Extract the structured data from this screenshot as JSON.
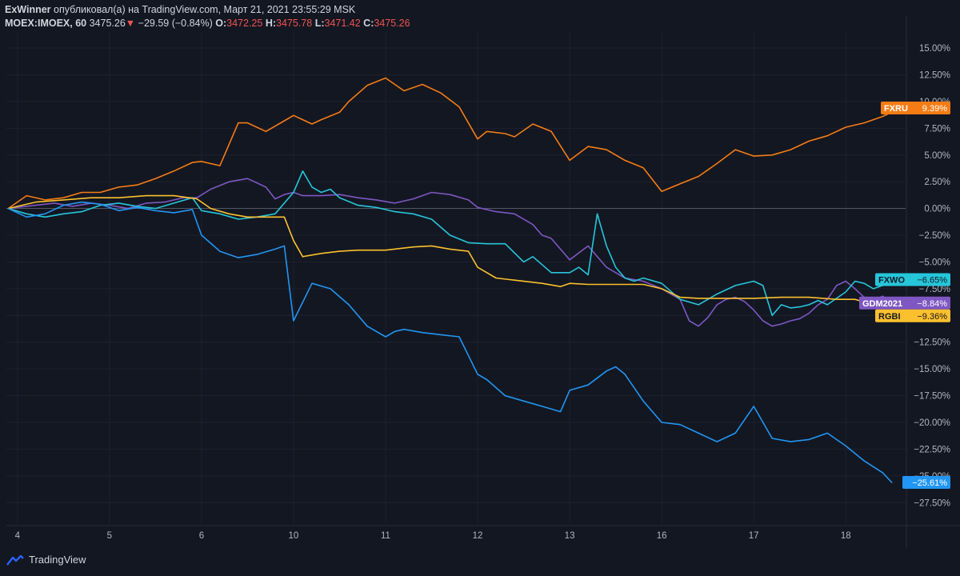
{
  "header": {
    "user": "ExWinner",
    "published_text": "опубликовал(а) на TradingView.com, Март 21, 2021 23:55:29 MSK",
    "symbol": "MOEX:IMOEX, 60",
    "last": "3475.26",
    "change_arrow": "▼",
    "change": "−29.59 (−0.84%)",
    "o_label": "O:",
    "o_val": "3472.25",
    "h_label": "H:",
    "h_val": "3475.78",
    "l_label": "L:",
    "l_val": "3471.42",
    "c_label": "C:",
    "c_val": "3475.26"
  },
  "footer": {
    "brand": "TradingView",
    "logo_icon": "tradingview-logo-icon"
  },
  "colors": {
    "background": "#131722",
    "grid": "#1e2230",
    "text": "#b2b5be",
    "down": "#ef5350"
  },
  "chart_data": {
    "type": "line",
    "title": "MOEX:IMOEX, 60",
    "x_label_type": "day of month",
    "ylim": [
      -29.5,
      16.5
    ],
    "y_ticks": [
      15,
      12.5,
      10,
      7.5,
      5,
      2.5,
      0,
      -2.5,
      -5,
      -7.5,
      -10,
      -12.5,
      -15,
      -17.5,
      -20,
      -22.5,
      -25,
      -27.5
    ],
    "y_tick_labels": [
      "15.00%",
      "12.50%",
      "10.00%",
      "7.50%",
      "5.00%",
      "2.50%",
      "0.00%",
      "−2.50%",
      "−5.00%",
      "−7.50%",
      "−10.00%",
      "−12.50%",
      "−15.00%",
      "−17.50%",
      "−20.00%",
      "−22.50%",
      "−25.00%",
      "−27.50%"
    ],
    "x_ticks": [
      {
        "label": "4",
        "x": 0
      },
      {
        "label": "5",
        "x": 1
      },
      {
        "label": "6",
        "x": 2
      },
      {
        "label": "10",
        "x": 3
      },
      {
        "label": "11",
        "x": 4
      },
      {
        "label": "12",
        "x": 5
      },
      {
        "label": "13",
        "x": 6
      },
      {
        "label": "16",
        "x": 7
      },
      {
        "label": "17",
        "x": 8
      },
      {
        "label": "18",
        "x": 9
      }
    ],
    "x_domain": [
      -0.12,
      9.65
    ],
    "series": [
      {
        "name": "FXRU",
        "color": "#f57c14",
        "last_label": "9.39%",
        "x": [
          -0.1,
          0.1,
          0.3,
          0.5,
          0.7,
          0.9,
          1.1,
          1.3,
          1.5,
          1.7,
          1.9,
          2.0,
          2.2,
          2.4,
          2.5,
          2.7,
          2.9,
          3.0,
          3.1,
          3.2,
          3.3,
          3.5,
          3.6,
          3.8,
          4.0,
          4.2,
          4.4,
          4.6,
          4.8,
          5.0,
          5.1,
          5.3,
          5.4,
          5.6,
          5.8,
          6.0,
          6.2,
          6.4,
          6.6,
          6.8,
          7.0,
          7.2,
          7.4,
          7.6,
          7.8,
          7.9,
          8.0,
          8.2,
          8.4,
          8.6,
          8.8,
          9.0,
          9.2,
          9.4,
          9.5,
          9.6
        ],
        "y": [
          0,
          1.2,
          0.8,
          1.0,
          1.5,
          1.5,
          2.0,
          2.2,
          2.8,
          3.5,
          4.3,
          4.4,
          4.0,
          8.0,
          8.0,
          7.2,
          8.2,
          8.7,
          8.3,
          7.9,
          8.3,
          9.0,
          10.0,
          11.5,
          12.2,
          11.0,
          11.6,
          10.8,
          9.5,
          6.5,
          7.2,
          7.0,
          6.7,
          7.9,
          7.2,
          4.5,
          5.8,
          5.5,
          4.5,
          3.8,
          1.6,
          2.3,
          3.0,
          4.2,
          5.5,
          5.2,
          4.9,
          5.0,
          5.5,
          6.3,
          6.8,
          7.6,
          8.0,
          8.6,
          9.0,
          9.39
        ]
      },
      {
        "name": "GDM2021",
        "color": "#7e57c2",
        "last_label": "−8.84%",
        "x": [
          -0.1,
          0.2,
          0.4,
          0.6,
          0.8,
          1.0,
          1.2,
          1.4,
          1.6,
          1.8,
          1.95,
          2.1,
          2.3,
          2.5,
          2.7,
          2.8,
          2.9,
          3.0,
          3.1,
          3.3,
          3.5,
          3.7,
          3.9,
          4.1,
          4.3,
          4.5,
          4.7,
          4.9,
          5.0,
          5.2,
          5.4,
          5.6,
          5.7,
          5.8,
          6.0,
          6.2,
          6.4,
          6.6,
          6.8,
          7.0,
          7.2,
          7.3,
          7.4,
          7.5,
          7.6,
          7.7,
          7.8,
          7.9,
          8.0,
          8.1,
          8.2,
          8.3,
          8.4,
          8.5,
          8.6,
          8.7,
          8.8,
          8.9,
          9.0,
          9.1,
          9.2,
          9.3,
          9.4,
          9.5
        ],
        "y": [
          0,
          0.3,
          0.5,
          0.2,
          0.5,
          0.3,
          0.0,
          0.5,
          0.6,
          1.0,
          1.0,
          1.8,
          2.5,
          2.8,
          2.0,
          0.9,
          1.3,
          1.5,
          1.2,
          1.2,
          1.3,
          1.0,
          0.8,
          0.5,
          0.9,
          1.5,
          1.3,
          0.8,
          0.1,
          -0.3,
          -0.5,
          -1.5,
          -2.5,
          -2.8,
          -4.8,
          -3.5,
          -5.5,
          -6.5,
          -6.8,
          -7.5,
          -8.5,
          -10.5,
          -11.0,
          -10.2,
          -9.0,
          -8.5,
          -8.3,
          -8.7,
          -9.5,
          -10.5,
          -11.0,
          -10.8,
          -10.5,
          -10.3,
          -9.8,
          -9.0,
          -8.5,
          -7.2,
          -6.8,
          -7.5,
          -8.3,
          -8.6,
          -8.2,
          -8.84
        ]
      },
      {
        "name": "FXWO",
        "color": "#26c6da",
        "last_label": "−6.65%",
        "x": [
          -0.1,
          0.1,
          0.3,
          0.5,
          0.7,
          0.9,
          1.1,
          1.3,
          1.5,
          1.7,
          1.9,
          2.0,
          2.2,
          2.4,
          2.6,
          2.8,
          3.0,
          3.1,
          3.2,
          3.3,
          3.4,
          3.5,
          3.7,
          3.9,
          4.1,
          4.3,
          4.5,
          4.7,
          4.9,
          5.1,
          5.3,
          5.5,
          5.6,
          5.8,
          6.0,
          6.1,
          6.2,
          6.3,
          6.4,
          6.5,
          6.6,
          6.7,
          6.8,
          7.0,
          7.2,
          7.4,
          7.6,
          7.8,
          8.0,
          8.1,
          8.2,
          8.3,
          8.4,
          8.5,
          8.6,
          8.7,
          8.8,
          8.9,
          9.0,
          9.1,
          9.2,
          9.3,
          9.4,
          9.5
        ],
        "y": [
          0,
          -0.5,
          -0.8,
          -0.5,
          -0.3,
          0.3,
          0.5,
          0.2,
          0.0,
          0.5,
          1.0,
          -0.2,
          -0.5,
          -1.0,
          -0.8,
          -0.5,
          1.5,
          3.5,
          2.0,
          1.5,
          1.8,
          1.0,
          0.3,
          0.1,
          -0.3,
          -0.5,
          -1.0,
          -2.5,
          -3.2,
          -3.3,
          -3.3,
          -5.0,
          -4.5,
          -6.0,
          -6.0,
          -5.5,
          -6.2,
          -0.5,
          -3.5,
          -5.5,
          -6.5,
          -6.8,
          -6.5,
          -7.0,
          -8.5,
          -9.0,
          -8.0,
          -7.2,
          -6.8,
          -7.2,
          -10.0,
          -9.0,
          -9.3,
          -9.2,
          -9.0,
          -8.6,
          -9.0,
          -8.4,
          -7.8,
          -6.8,
          -7.0,
          -7.5,
          -7.2,
          -6.65
        ]
      },
      {
        "name": "RGBI",
        "color": "#fbc02d",
        "last_label": "−9.36%",
        "x": [
          -0.1,
          0.2,
          0.5,
          0.8,
          1.1,
          1.4,
          1.7,
          1.95,
          2.1,
          2.3,
          2.5,
          2.7,
          2.9,
          3.0,
          3.1,
          3.3,
          3.5,
          3.7,
          4.0,
          4.3,
          4.5,
          4.7,
          4.9,
          5.0,
          5.2,
          5.4,
          5.7,
          5.9,
          6.0,
          6.2,
          6.5,
          6.8,
          7.0,
          7.2,
          7.4,
          7.7,
          8.0,
          8.3,
          8.6,
          8.9,
          9.1,
          9.3,
          9.5
        ],
        "y": [
          0,
          0.6,
          0.8,
          1.0,
          1.0,
          1.2,
          1.2,
          0.9,
          0.0,
          -0.5,
          -0.8,
          -0.8,
          -0.8,
          -3.0,
          -4.5,
          -4.2,
          -4.0,
          -3.9,
          -3.9,
          -3.6,
          -3.5,
          -3.8,
          -4.0,
          -5.5,
          -6.5,
          -6.7,
          -7.0,
          -7.3,
          -7.0,
          -7.1,
          -7.1,
          -7.1,
          -7.5,
          -8.3,
          -8.4,
          -8.4,
          -8.4,
          -8.3,
          -8.3,
          -8.5,
          -8.5,
          -9.0,
          -9.36
        ]
      },
      {
        "name": "IMOEX",
        "color": "#2196f3",
        "last_label": "−25.61%",
        "x": [
          -0.1,
          0.1,
          0.3,
          0.5,
          0.7,
          0.9,
          1.1,
          1.3,
          1.5,
          1.7,
          1.9,
          2.0,
          2.2,
          2.4,
          2.6,
          2.8,
          2.9,
          3.0,
          3.2,
          3.4,
          3.6,
          3.8,
          4.0,
          4.1,
          4.2,
          4.4,
          4.6,
          4.8,
          5.0,
          5.1,
          5.3,
          5.5,
          5.7,
          5.9,
          6.0,
          6.2,
          6.4,
          6.5,
          6.6,
          6.8,
          7.0,
          7.2,
          7.4,
          7.6,
          7.8,
          8.0,
          8.2,
          8.4,
          8.6,
          8.8,
          9.0,
          9.2,
          9.4,
          9.5
        ],
        "y": [
          0,
          -0.8,
          -0.5,
          0.3,
          0.6,
          0.4,
          -0.2,
          0.1,
          -0.2,
          -0.4,
          -0.1,
          -2.5,
          -4.0,
          -4.6,
          -4.3,
          -3.8,
          -3.5,
          -10.5,
          -7.0,
          -7.5,
          -9.0,
          -11.0,
          -12.0,
          -11.5,
          -11.3,
          -11.6,
          -11.8,
          -12.0,
          -15.5,
          -16.0,
          -17.5,
          -18.0,
          -18.5,
          -19.0,
          -17.0,
          -16.5,
          -15.2,
          -14.8,
          -15.5,
          -18.0,
          -20.0,
          -20.2,
          -21.0,
          -21.8,
          -21.0,
          -18.5,
          -21.5,
          -21.8,
          -21.6,
          -21.0,
          -22.2,
          -23.6,
          -24.7,
          -25.61
        ]
      }
    ]
  }
}
